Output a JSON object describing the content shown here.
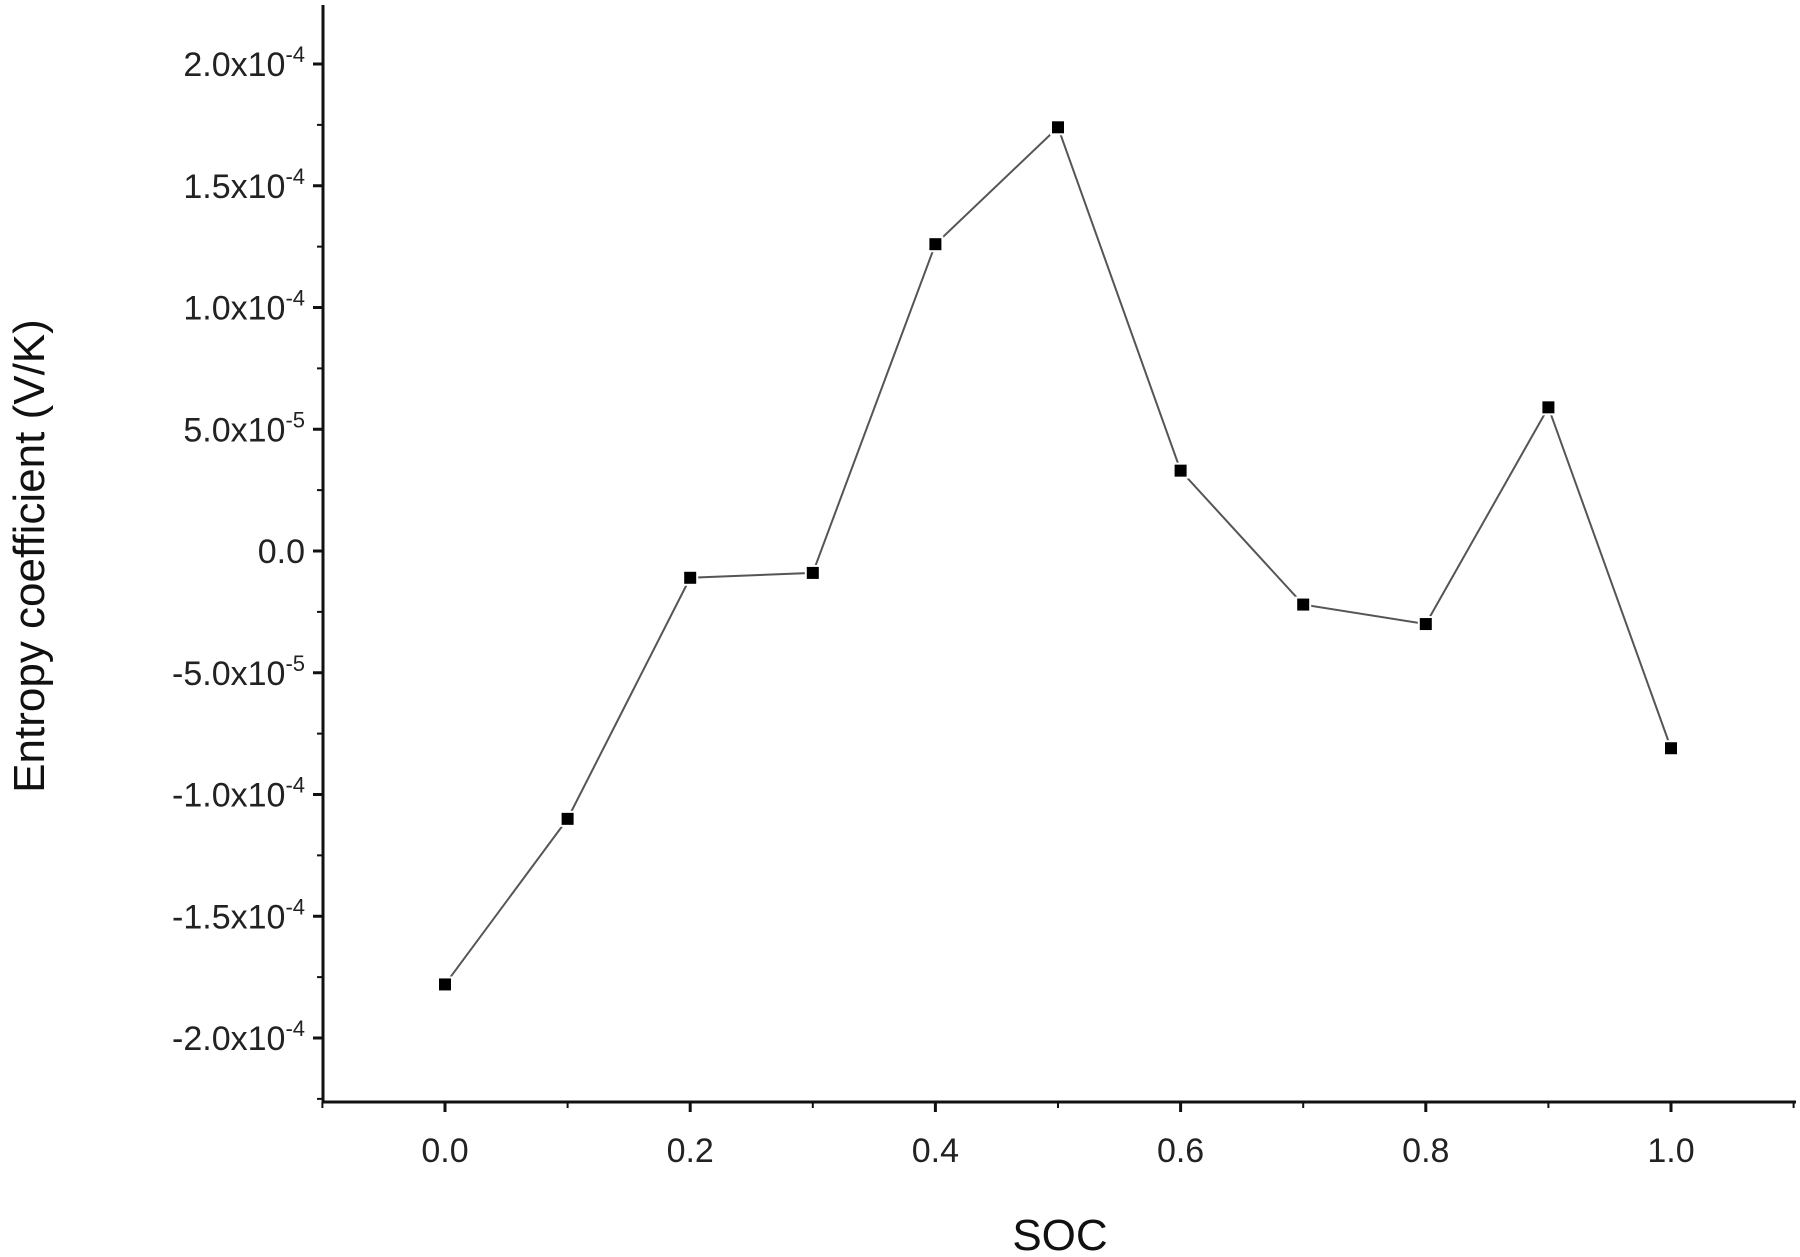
{
  "chart_data": {
    "type": "line",
    "title": "",
    "xlabel": "SOC",
    "ylabel": "Entropy coefficient (V/K)",
    "xlim": [
      -0.1,
      1.1
    ],
    "ylim": [
      -0.000225,
      0.000225
    ],
    "x_ticks": [
      {
        "value": 0.0,
        "label": "0.0"
      },
      {
        "value": 0.2,
        "label": "0.2"
      },
      {
        "value": 0.4,
        "label": "0.4"
      },
      {
        "value": 0.6,
        "label": "0.6"
      },
      {
        "value": 0.8,
        "label": "0.8"
      },
      {
        "value": 1.0,
        "label": "1.0"
      }
    ],
    "y_ticks": [
      {
        "value": 0.0002,
        "mantissa": "2.0x10",
        "exp": "-4"
      },
      {
        "value": 0.00015,
        "mantissa": "1.5x10",
        "exp": "-4"
      },
      {
        "value": 0.0001,
        "mantissa": "1.0x10",
        "exp": "-4"
      },
      {
        "value": 5e-05,
        "mantissa": "5.0x10",
        "exp": "-5"
      },
      {
        "value": 0.0,
        "mantissa": "0.0",
        "exp": ""
      },
      {
        "value": -5e-05,
        "mantissa": "-5.0x10",
        "exp": "-5"
      },
      {
        "value": -0.0001,
        "mantissa": "-1.0x10",
        "exp": "-4"
      },
      {
        "value": -0.00015,
        "mantissa": "-1.5x10",
        "exp": "-4"
      },
      {
        "value": -0.0002,
        "mantissa": "-2.0x10",
        "exp": "-4"
      }
    ],
    "series": [
      {
        "x": [
          0.0,
          0.1,
          0.2,
          0.3,
          0.4,
          0.5,
          0.6,
          0.7,
          0.8,
          0.9,
          1.0
        ],
        "values": [
          -0.000178,
          -0.00011,
          -1.1e-05,
          -9e-06,
          0.000126,
          0.000174,
          3.3e-05,
          -2.2e-05,
          -3e-05,
          5.9e-05,
          -8.1e-05
        ],
        "marker": "square",
        "color": "#000000",
        "line_color": "#555555"
      }
    ],
    "grid": false,
    "legend": "none"
  }
}
